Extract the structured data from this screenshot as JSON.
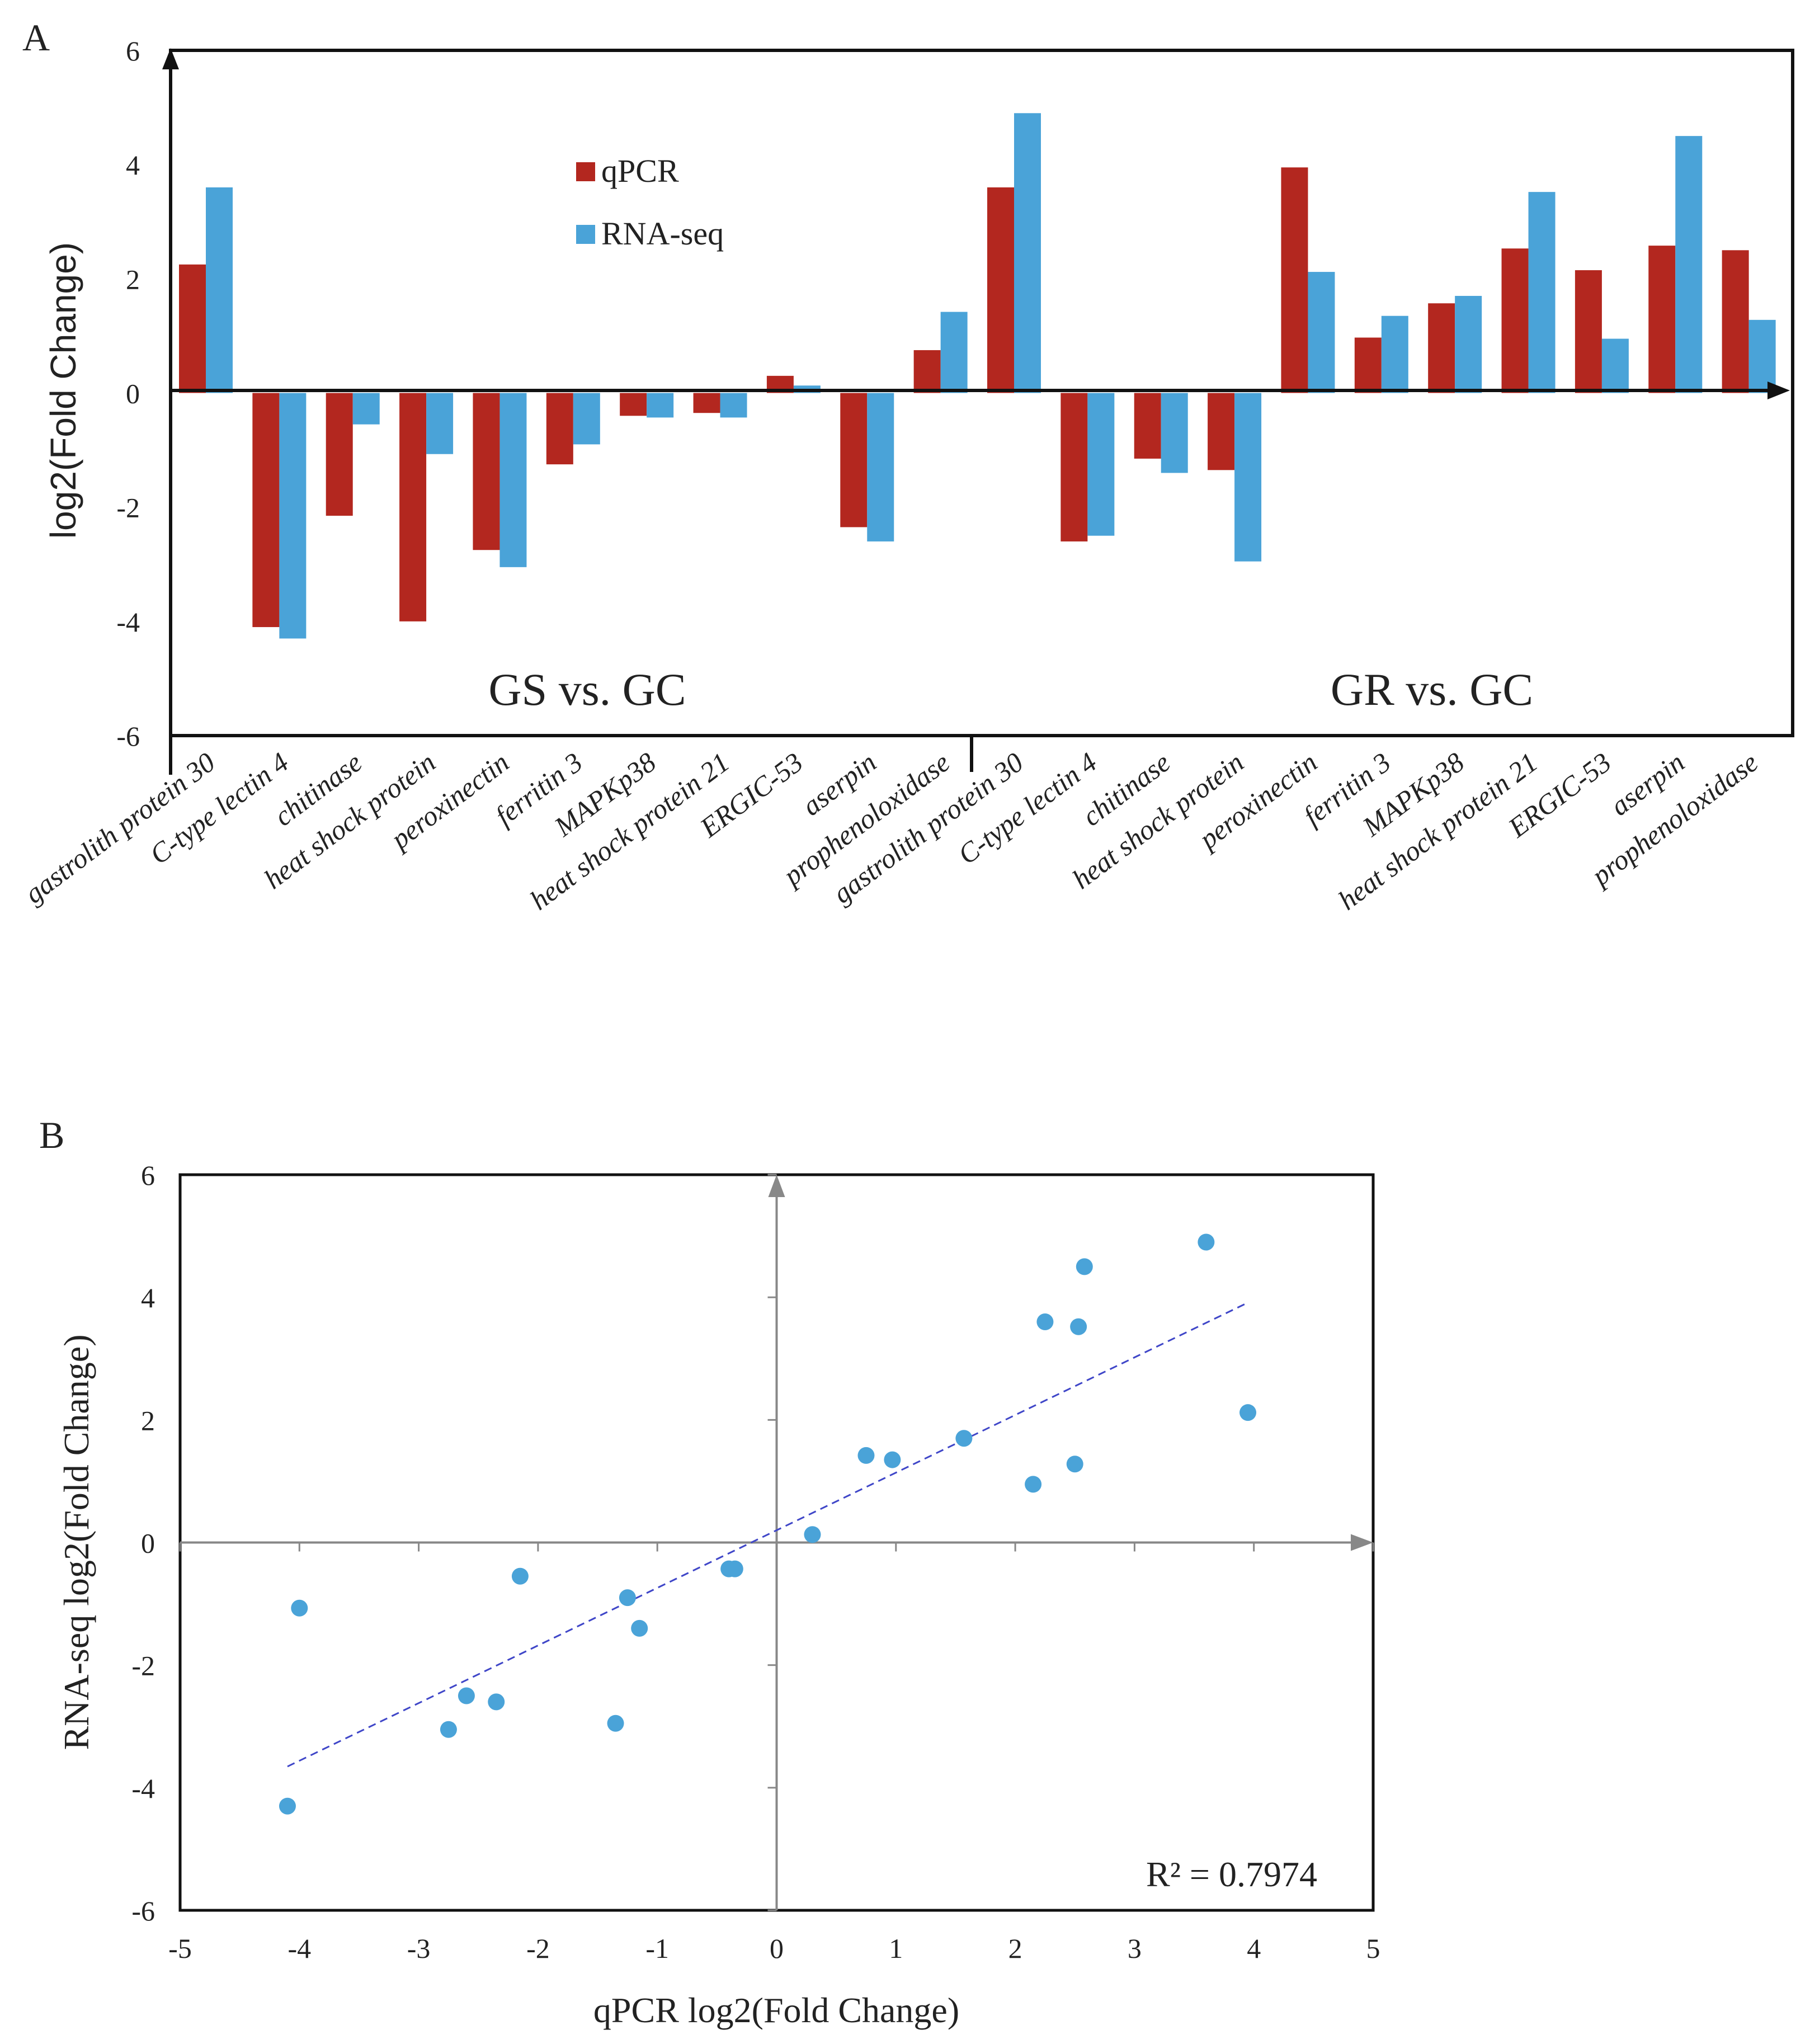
{
  "colors": {
    "qpcr": "#b3271f",
    "rnaseq": "#4aa3d8",
    "axis": "#111111",
    "arrow_gray": "#888888",
    "trend": "#3f46c8"
  },
  "chart_data": [
    {
      "type": "bar",
      "panel_label": "A",
      "ylabel": "log2(Fold Change)",
      "ylim": [
        -6,
        6
      ],
      "yticks": [
        "6",
        "4",
        "2",
        "0",
        "-2",
        "-4",
        "-6"
      ],
      "legend_position": "top-left",
      "groups": [
        "GS vs. GC",
        "GR vs. GC"
      ],
      "categories": [
        "gastrolith protein 30",
        "C-type lectin 4",
        "chitinase",
        "heat shock protein",
        "peroxinectin",
        "ferritin 3",
        "MAPKp38",
        "heat shock protein 21",
        "ERGIC-53",
        "aserpin",
        "prophenoloxidase",
        "gastrolith protein 30",
        "C-type lectin 4",
        "chitinase",
        "heat shock protein",
        "peroxinectin",
        "ferritin 3",
        "MAPKp38",
        "heat shock protein 21",
        "ERGIC-53",
        "aserpin",
        "prophenoloxidase"
      ],
      "series": [
        {
          "name": "qPCR",
          "values": [
            2.25,
            -4.1,
            -2.15,
            -4.0,
            -2.75,
            -1.25,
            -0.4,
            -0.35,
            0.3,
            -2.35,
            0.75,
            3.6,
            -2.6,
            -1.15,
            -1.35,
            3.95,
            0.97,
            1.57,
            2.53,
            2.15,
            2.58,
            2.5
          ]
        },
        {
          "name": "RNA-seq",
          "values": [
            3.6,
            -4.3,
            -0.55,
            -1.07,
            -3.05,
            -0.9,
            -0.43,
            -0.43,
            0.13,
            -2.6,
            1.42,
            4.9,
            -2.5,
            -1.4,
            -2.95,
            2.12,
            1.35,
            1.7,
            3.52,
            0.95,
            4.5,
            1.28
          ]
        }
      ]
    },
    {
      "type": "scatter",
      "panel_label": "B",
      "xlabel": "qPCR log2(Fold Change)",
      "ylabel": "RNA-seq log2(Fold Change)",
      "xlim": [
        -5,
        5
      ],
      "ylim": [
        -6,
        6
      ],
      "xticks": [
        "-5",
        "-4",
        "-3",
        "-2",
        "-1",
        "0",
        "1",
        "2",
        "3",
        "4",
        "5"
      ],
      "yticks": [
        "6",
        "4",
        "2",
        "0",
        "-2",
        "-4",
        "-6"
      ],
      "r_squared": "R² = 0.7974",
      "points": [
        [
          2.25,
          3.6
        ],
        [
          -4.1,
          -4.3
        ],
        [
          -2.15,
          -0.55
        ],
        [
          -4.0,
          -1.07
        ],
        [
          -2.75,
          -3.05
        ],
        [
          -1.25,
          -0.9
        ],
        [
          -0.4,
          -0.43
        ],
        [
          -0.35,
          -0.43
        ],
        [
          0.3,
          0.13
        ],
        [
          -2.35,
          -2.6
        ],
        [
          0.75,
          1.42
        ],
        [
          3.6,
          4.9
        ],
        [
          -2.6,
          -2.5
        ],
        [
          -1.15,
          -1.4
        ],
        [
          -1.35,
          -2.95
        ],
        [
          3.95,
          2.12
        ],
        [
          0.97,
          1.35
        ],
        [
          1.57,
          1.7
        ],
        [
          2.53,
          3.52
        ],
        [
          2.15,
          0.95
        ],
        [
          2.58,
          4.5
        ],
        [
          2.5,
          1.28
        ]
      ],
      "trendline": {
        "x_from": -4.1,
        "x_to": 3.95,
        "slope": 0.94,
        "intercept": 0.2
      }
    }
  ]
}
